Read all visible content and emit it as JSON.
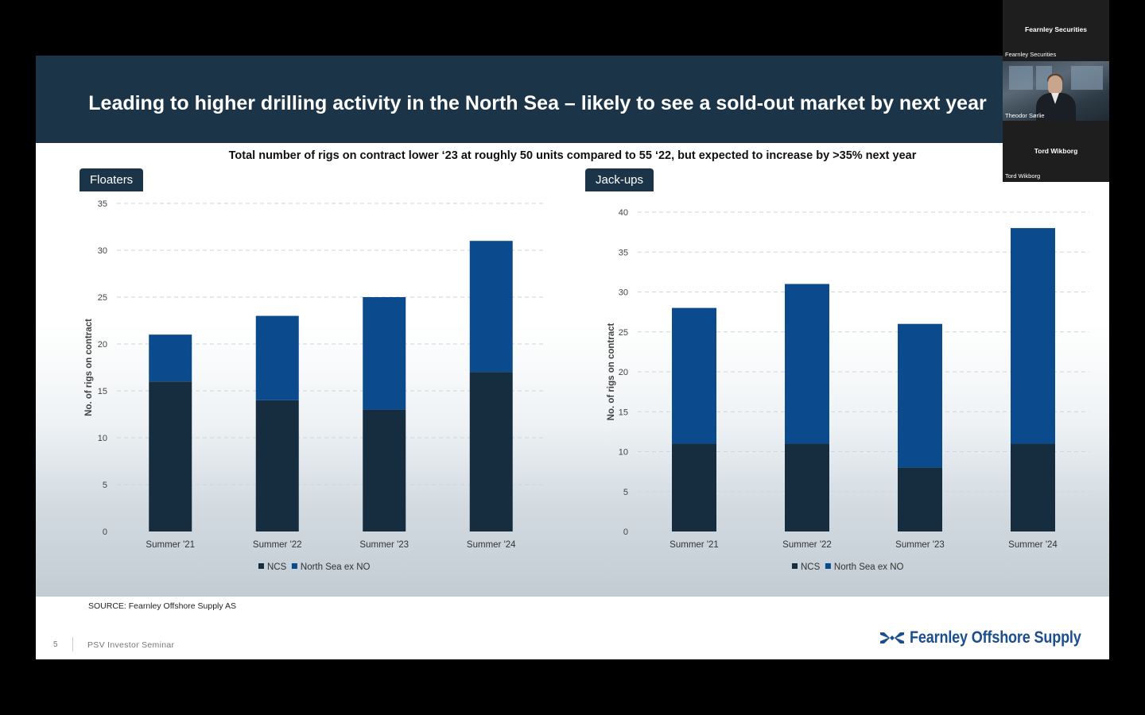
{
  "slide": {
    "title": "Leading to higher drilling activity in the North Sea – likely to see a sold-out market by next year",
    "subtitle": "Total number of rigs on contract lower ‘23 at roughly 50 units compared to 55 ‘22, but expected to increase by >35% next year",
    "source": "SOURCE: Fearnley Offshore Supply AS",
    "page_number": "5",
    "footer_label": "PSV Investor Seminar",
    "logo_text": "Fearnley Offshore Supply"
  },
  "participants": {
    "tile1": {
      "name": "Fearnley Securities",
      "caption": "Fearnley Securities"
    },
    "tile2": {
      "caption": "Theodor Sørlie"
    },
    "tile3": {
      "name": "Tord Wikborg",
      "caption": "Tord Wikborg"
    }
  },
  "colors": {
    "ncs": "#162d3f",
    "north_sea_ex_no": "#0b4a8c",
    "header": "#1b3447",
    "logo": "#1b4e8c"
  },
  "chart_data": [
    {
      "type": "bar",
      "stacked": true,
      "panel_label": "Floaters",
      "categories": [
        "Summer '21",
        "Summer '22",
        "Summer '23",
        "Summer '24"
      ],
      "series": [
        {
          "name": "NCS",
          "values": [
            16,
            14,
            13,
            17
          ]
        },
        {
          "name": "North Sea ex NO",
          "values": [
            5,
            9,
            12,
            14
          ]
        }
      ],
      "ylabel": "No. of rigs on contract",
      "ylim": [
        0,
        35
      ],
      "yticks": [
        0,
        5,
        10,
        15,
        20,
        25,
        30,
        35
      ],
      "grid": true,
      "legend": "bottom-center"
    },
    {
      "type": "bar",
      "stacked": true,
      "panel_label": "Jack-ups",
      "categories": [
        "Summer '21",
        "Summer '22",
        "Summer '23",
        "Summer '24"
      ],
      "series": [
        {
          "name": "NCS",
          "values": [
            11,
            11,
            8,
            11
          ]
        },
        {
          "name": "North Sea ex NO",
          "values": [
            17,
            20,
            18,
            27
          ]
        }
      ],
      "ylabel": "No. of rigs on contract",
      "ylim": [
        0,
        40
      ],
      "yticks": [
        0,
        5,
        10,
        15,
        20,
        25,
        30,
        35,
        40
      ],
      "grid": true,
      "legend": "bottom-center"
    }
  ]
}
